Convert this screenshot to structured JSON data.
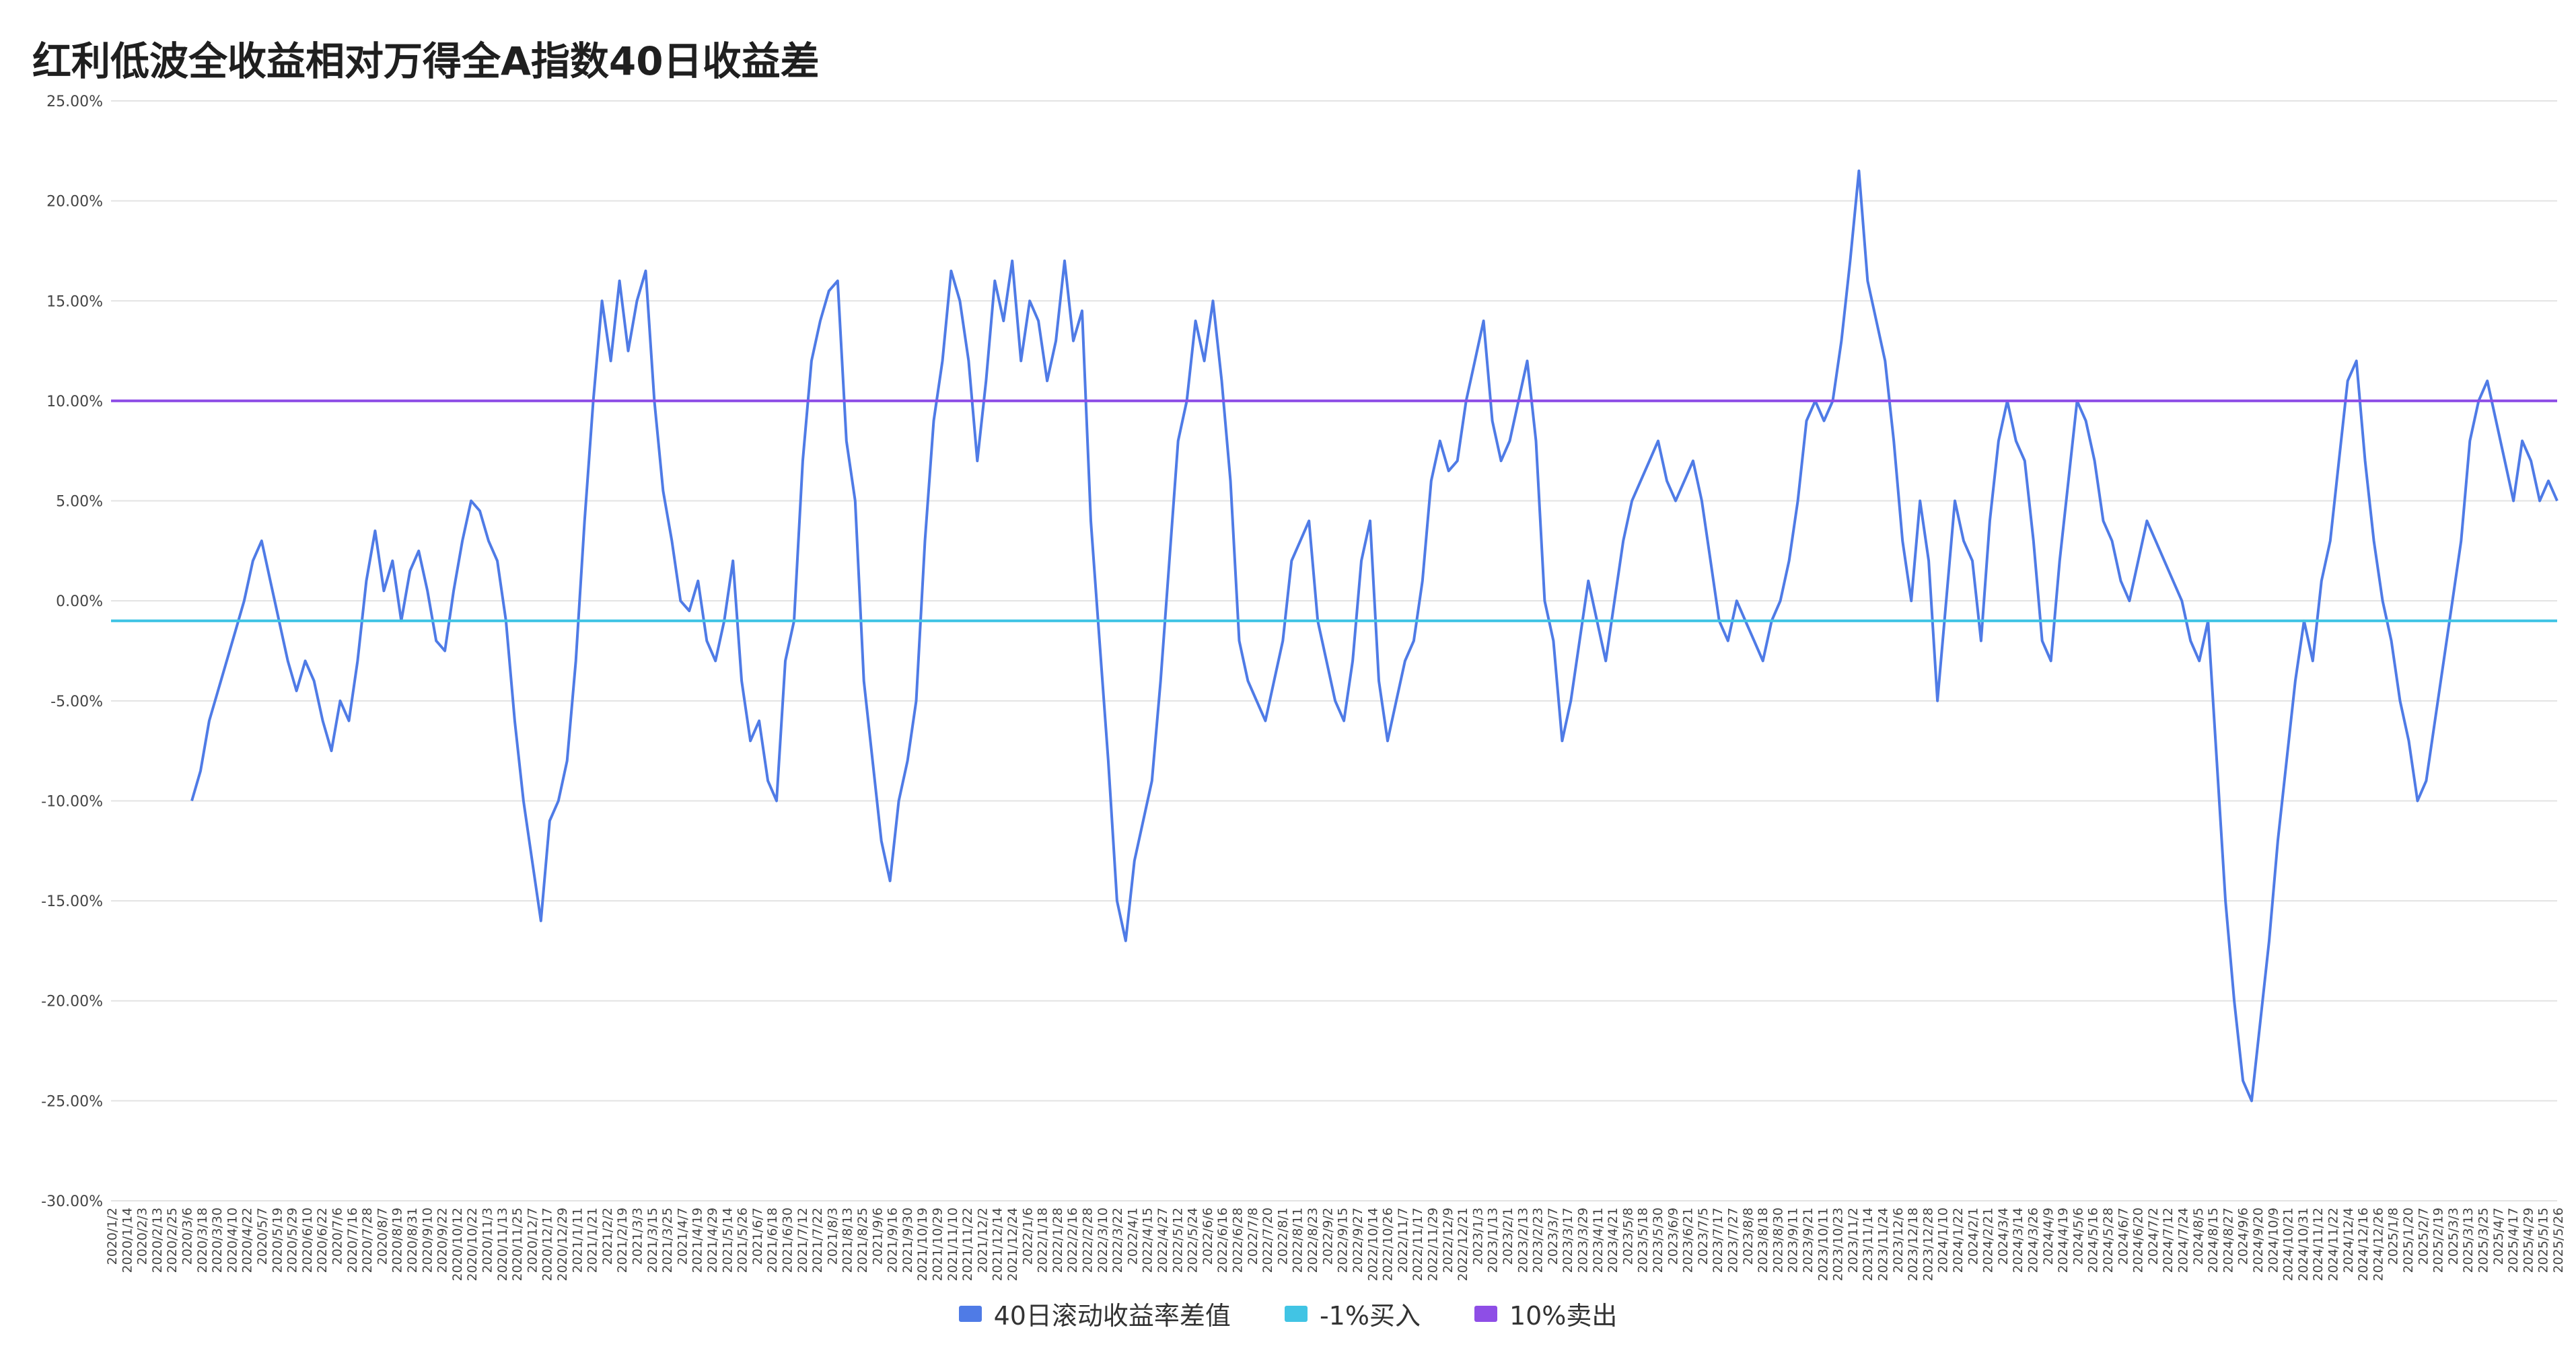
{
  "chart_data": {
    "type": "line",
    "title": "红利低波全收益相对万得全A指数40日收益差",
    "ylim": [
      -30,
      25
    ],
    "yticks": [
      25,
      20,
      15,
      10,
      5,
      0,
      -5,
      -10,
      -15,
      -20,
      -25,
      -30
    ],
    "ytick_labels": [
      "25.00%",
      "20.00%",
      "15.00%",
      "10.00%",
      "5.00%",
      "0.00%",
      "-5.00%",
      "-10.00%",
      "-15.00%",
      "-20.00%",
      "-25.00%",
      "-30.00%"
    ],
    "xlabel": "",
    "ylabel": "",
    "grid": "horizontal",
    "legend_position": "bottom",
    "x_tick_labels": [
      "2020/1/2",
      "2020/1/14",
      "2020/2/3",
      "2020/2/13",
      "2020/2/25",
      "2020/3/6",
      "2020/3/18",
      "2020/3/30",
      "2020/4/10",
      "2020/4/22",
      "2020/5/7",
      "2020/5/19",
      "2020/5/29",
      "2020/6/10",
      "2020/6/22",
      "2020/7/6",
      "2020/7/16",
      "2020/7/28",
      "2020/8/7",
      "2020/8/19",
      "2020/8/31",
      "2020/9/10",
      "2020/9/22",
      "2020/10/12",
      "2020/10/22",
      "2020/11/3",
      "2020/11/13",
      "2020/11/25",
      "2020/12/7",
      "2020/12/17",
      "2020/12/29",
      "2021/1/11",
      "2021/1/21",
      "2021/2/2",
      "2021/2/19",
      "2021/3/3",
      "2021/3/15",
      "2021/3/25",
      "2021/4/7",
      "2021/4/19",
      "2021/4/29",
      "2021/5/14",
      "2021/5/26",
      "2021/6/7",
      "2021/6/18",
      "2021/6/30",
      "2021/7/12",
      "2021/7/22",
      "2021/8/3",
      "2021/8/13",
      "2021/8/25",
      "2021/9/6",
      "2021/9/16",
      "2021/9/30",
      "2021/10/19",
      "2021/10/29",
      "2021/11/10",
      "2021/11/22",
      "2021/12/2",
      "2021/12/14",
      "2021/12/24",
      "2022/1/6",
      "2022/1/18",
      "2022/1/28",
      "2022/2/16",
      "2022/2/28",
      "2022/3/10",
      "2022/3/22",
      "2022/4/1",
      "2022/4/15",
      "2022/4/27",
      "2022/5/12",
      "2022/5/24",
      "2022/6/6",
      "2022/6/16",
      "2022/6/28",
      "2022/7/8",
      "2022/7/20",
      "2022/8/1",
      "2022/8/11",
      "2022/8/23",
      "2022/9/2",
      "2022/9/15",
      "2022/9/27",
      "2022/10/14",
      "2022/10/26",
      "2022/11/7",
      "2022/11/17",
      "2022/11/29",
      "2022/12/9",
      "2022/12/21",
      "2023/1/3",
      "2023/1/13",
      "2023/2/1",
      "2023/2/13",
      "2023/2/23",
      "2023/3/7",
      "2023/3/17",
      "2023/3/29",
      "2023/4/11",
      "2023/4/21",
      "2023/5/8",
      "2023/5/18",
      "2023/5/30",
      "2023/6/9",
      "2023/6/21",
      "2023/7/5",
      "2023/7/17",
      "2023/7/27",
      "2023/8/8",
      "2023/8/18",
      "2023/8/30",
      "2023/9/11",
      "2023/9/21",
      "2023/10/11",
      "2023/10/23",
      "2023/11/2",
      "2023/11/14",
      "2023/11/24",
      "2023/12/6",
      "2023/12/18",
      "2023/12/28",
      "2024/1/10",
      "2024/1/22",
      "2024/2/1",
      "2024/2/21",
      "2024/3/4",
      "2024/3/14",
      "2024/3/26",
      "2024/4/9",
      "2024/4/19",
      "2024/5/6",
      "2024/5/16",
      "2024/5/28",
      "2024/6/7",
      "2024/6/20",
      "2024/7/2",
      "2024/7/12",
      "2024/7/24",
      "2024/8/5",
      "2024/8/15",
      "2024/8/27",
      "2024/9/6",
      "2024/9/20",
      "2024/10/9",
      "2024/10/21",
      "2024/10/31",
      "2024/11/12",
      "2024/11/22",
      "2024/12/4",
      "2024/12/16",
      "2024/12/26",
      "2025/1/8",
      "2025/1/20",
      "2025/2/7",
      "2025/2/19",
      "2025/3/3",
      "2025/3/13",
      "2025/3/25",
      "2025/4/7",
      "2025/4/17",
      "2025/4/29",
      "2025/5/15",
      "2025/5/26"
    ],
    "series": [
      {
        "name": "40日滚动收益率差值",
        "color": "#4f7be6",
        "values": [
          -10,
          -8.5,
          -6,
          -4.5,
          -3,
          -1.5,
          0,
          2,
          3,
          1,
          -1,
          -3,
          -4.5,
          -3,
          -4,
          -6,
          -7.5,
          -5,
          -6,
          -3,
          1,
          3.5,
          0.5,
          2,
          -1,
          1.5,
          2.5,
          0.5,
          -2,
          -2.5,
          0.5,
          3,
          5,
          4.5,
          3,
          2,
          -1,
          -6,
          -10,
          -13,
          -16,
          -11,
          -10,
          -8,
          -3,
          4,
          10,
          15,
          12,
          16,
          12.5,
          15,
          16.5,
          10,
          5.5,
          3,
          0,
          -0.5,
          1,
          -2,
          -3,
          -1,
          2,
          -4,
          -7,
          -6,
          -9,
          -10,
          -3,
          -1,
          7,
          12,
          14,
          15.5,
          16,
          8,
          5,
          -4,
          -8,
          -12,
          -14,
          -10,
          -8,
          -5,
          3,
          9,
          12,
          16.5,
          15,
          12,
          7,
          11,
          16,
          14,
          17,
          12,
          15,
          14,
          11,
          13,
          17,
          13,
          14.5,
          4,
          -2,
          -8,
          -15,
          -17,
          -13,
          -11,
          -9,
          -4,
          2,
          8,
          10,
          14,
          12,
          15,
          11,
          6,
          -2,
          -4,
          -5,
          -6,
          -4,
          -2,
          2,
          3,
          4,
          -1,
          -3,
          -5,
          -6,
          -3,
          2,
          4,
          -4,
          -7,
          -5,
          -3,
          -2,
          1,
          6,
          8,
          6.5,
          7,
          10,
          12,
          14,
          9,
          7,
          8,
          10,
          12,
          8,
          0,
          -2,
          -7,
          -5,
          -2,
          1,
          -1,
          -3,
          0,
          3,
          5,
          6,
          7,
          8,
          6,
          5,
          6,
          7,
          5,
          2,
          -1,
          -2,
          0,
          -1,
          -2,
          -3,
          -1,
          0,
          2,
          5,
          9,
          10,
          9,
          10,
          13,
          17,
          21.5,
          16,
          14,
          12,
          8,
          3,
          0,
          5,
          2,
          -5,
          0,
          5,
          3,
          2,
          -2,
          4,
          8,
          10,
          8,
          7,
          3,
          -2,
          -3,
          2,
          6,
          10,
          9,
          7,
          4,
          3,
          1,
          0,
          2,
          4,
          3,
          2,
          1,
          0,
          -2,
          -3,
          -1,
          -8,
          -15,
          -20,
          -24,
          -25,
          -21,
          -17,
          -12,
          -8,
          -4,
          -1,
          -3,
          1,
          3,
          7,
          11,
          12,
          7,
          3,
          0,
          -2,
          -5,
          -7,
          -10,
          -9,
          -6,
          -3,
          0,
          3,
          8,
          10,
          11,
          9,
          7,
          5,
          8,
          7,
          5,
          6,
          5
        ]
      },
      {
        "name": "-1%买入",
        "color": "#41c4e4",
        "values": [
          -1
        ]
      },
      {
        "name": "10%卖出",
        "color": "#8e4ee6",
        "values": [
          10
        ]
      }
    ]
  },
  "legend": {
    "items": [
      {
        "label": "40日滚动收益率差值",
        "color": "#4f7be6"
      },
      {
        "label": "-1%买入",
        "color": "#41c4e4"
      },
      {
        "label": "10%卖出",
        "color": "#8e4ee6"
      }
    ]
  }
}
